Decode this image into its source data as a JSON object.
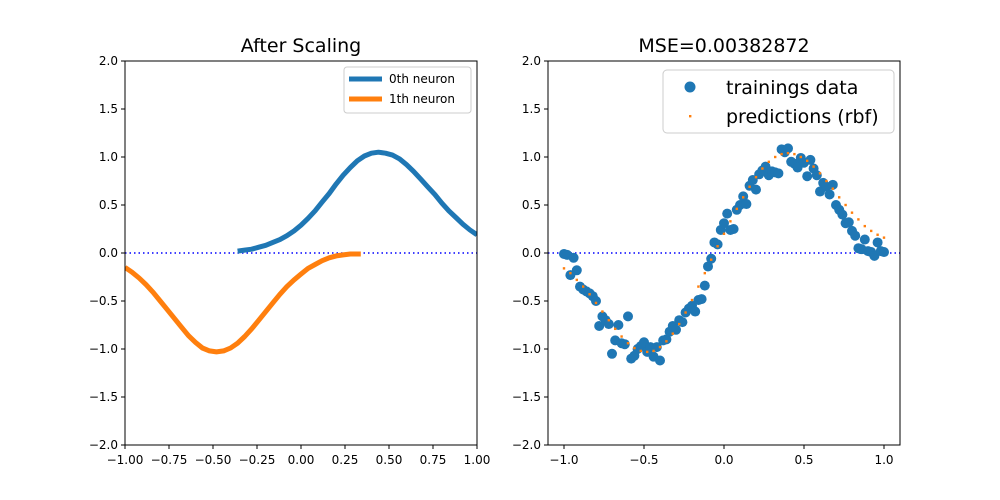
{
  "chart_data": [
    {
      "type": "line",
      "title": "After Scaling",
      "xlabel": "",
      "ylabel": "",
      "xlim": [
        -1.0,
        1.0
      ],
      "ylim": [
        -2.0,
        2.0
      ],
      "xticks": [
        -1.0,
        -0.75,
        -0.5,
        -0.25,
        0.0,
        0.25,
        0.5,
        0.75,
        1.0
      ],
      "xtick_labels": [
        "−1.00",
        "−0.75",
        "−0.50",
        "−0.25",
        "0.00",
        "0.25",
        "0.50",
        "0.75",
        "1.00"
      ],
      "yticks": [
        -2.0,
        -1.5,
        -1.0,
        -0.5,
        0.0,
        0.5,
        1.0,
        1.5,
        2.0
      ],
      "ytick_labels": [
        "−2.0",
        "−1.5",
        "−1.0",
        "−0.5",
        "0.0",
        "0.5",
        "1.0",
        "1.5",
        "2.0"
      ],
      "grid": false,
      "legend_position": "upper right",
      "reference_line": {
        "y": 0.0,
        "style": "dotted",
        "color": "#0000ff"
      },
      "series": [
        {
          "name": "0th neuron",
          "color": "#1f77b4",
          "x": [
            -0.36,
            -0.32,
            -0.28,
            -0.24,
            -0.2,
            -0.16,
            -0.12,
            -0.08,
            -0.04,
            0.0,
            0.04,
            0.08,
            0.12,
            0.16,
            0.2,
            0.24,
            0.28,
            0.32,
            0.36,
            0.4,
            0.44,
            0.48,
            0.52,
            0.56,
            0.6,
            0.64,
            0.68,
            0.72,
            0.76,
            0.8,
            0.84,
            0.88,
            0.92,
            0.96,
            1.0
          ],
          "y": [
            0.02,
            0.03,
            0.04,
            0.06,
            0.08,
            0.11,
            0.14,
            0.18,
            0.23,
            0.29,
            0.36,
            0.44,
            0.53,
            0.62,
            0.72,
            0.81,
            0.89,
            0.96,
            1.01,
            1.04,
            1.05,
            1.04,
            1.02,
            0.98,
            0.92,
            0.85,
            0.77,
            0.69,
            0.61,
            0.52,
            0.44,
            0.37,
            0.3,
            0.24,
            0.19
          ]
        },
        {
          "name": "1th neuron",
          "color": "#ff7f0e",
          "x": [
            -1.0,
            -0.96,
            -0.92,
            -0.88,
            -0.84,
            -0.8,
            -0.76,
            -0.72,
            -0.68,
            -0.64,
            -0.6,
            -0.56,
            -0.52,
            -0.48,
            -0.44,
            -0.4,
            -0.36,
            -0.32,
            -0.28,
            -0.24,
            -0.2,
            -0.16,
            -0.12,
            -0.08,
            -0.04,
            0.0,
            0.04,
            0.08,
            0.12,
            0.16,
            0.2,
            0.24,
            0.28,
            0.32,
            0.34
          ],
          "y": [
            -0.15,
            -0.2,
            -0.26,
            -0.33,
            -0.41,
            -0.5,
            -0.59,
            -0.68,
            -0.77,
            -0.86,
            -0.93,
            -0.99,
            -1.02,
            -1.03,
            -1.02,
            -0.99,
            -0.94,
            -0.87,
            -0.79,
            -0.7,
            -0.61,
            -0.52,
            -0.43,
            -0.35,
            -0.28,
            -0.22,
            -0.16,
            -0.12,
            -0.08,
            -0.05,
            -0.03,
            -0.02,
            -0.01,
            -0.01,
            -0.01
          ]
        }
      ]
    },
    {
      "type": "scatter",
      "title": "MSE=0.00382872",
      "xlabel": "",
      "ylabel": "",
      "xlim": [
        -1.1,
        1.1
      ],
      "ylim": [
        -2.0,
        2.0
      ],
      "xticks": [
        -1.0,
        -0.5,
        0.0,
        0.5,
        1.0
      ],
      "xtick_labels": [
        "−1.0",
        "−0.5",
        "0.0",
        "0.5",
        "1.0"
      ],
      "yticks": [
        -2.0,
        -1.5,
        -1.0,
        -0.5,
        0.0,
        0.5,
        1.0,
        1.5,
        2.0
      ],
      "ytick_labels": [
        "−2.0",
        "−1.5",
        "−1.0",
        "−0.5",
        "0.0",
        "0.5",
        "1.0",
        "1.5",
        "2.0"
      ],
      "grid": false,
      "legend_position": "upper right",
      "reference_line": {
        "y": 0.0,
        "style": "dotted",
        "color": "#0000ff"
      },
      "series": [
        {
          "name": "trainings data",
          "color": "#1f77b4",
          "marker": "circle",
          "x": [
            -1.0,
            -0.98,
            -0.96,
            -0.94,
            -0.92,
            -0.9,
            -0.88,
            -0.86,
            -0.84,
            -0.82,
            -0.8,
            -0.78,
            -0.76,
            -0.74,
            -0.72,
            -0.7,
            -0.68,
            -0.66,
            -0.64,
            -0.62,
            -0.6,
            -0.58,
            -0.56,
            -0.54,
            -0.52,
            -0.5,
            -0.48,
            -0.46,
            -0.44,
            -0.42,
            -0.4,
            -0.38,
            -0.36,
            -0.34,
            -0.32,
            -0.3,
            -0.28,
            -0.26,
            -0.24,
            -0.22,
            -0.2,
            -0.18,
            -0.16,
            -0.14,
            -0.12,
            -0.1,
            -0.08,
            -0.06,
            -0.04,
            -0.02,
            0.0,
            0.02,
            0.04,
            0.06,
            0.08,
            0.1,
            0.12,
            0.14,
            0.16,
            0.18,
            0.2,
            0.22,
            0.24,
            0.26,
            0.28,
            0.3,
            0.32,
            0.34,
            0.36,
            0.38,
            0.4,
            0.42,
            0.44,
            0.46,
            0.48,
            0.5,
            0.52,
            0.54,
            0.56,
            0.58,
            0.6,
            0.62,
            0.64,
            0.66,
            0.68,
            0.7,
            0.72,
            0.74,
            0.76,
            0.78,
            0.8,
            0.82,
            0.84,
            0.86,
            0.88,
            0.9,
            0.92,
            0.94,
            0.96,
            0.98,
            1.0
          ],
          "y": [
            -0.01,
            -0.02,
            -0.23,
            -0.05,
            -0.18,
            -0.35,
            -0.38,
            -0.4,
            -0.42,
            -0.45,
            -0.5,
            -0.76,
            -0.66,
            -0.7,
            -0.74,
            -1.05,
            -0.91,
            -0.75,
            -0.94,
            -0.95,
            -0.66,
            -1.1,
            -1.07,
            -1.0,
            -0.97,
            -0.93,
            -1.03,
            -0.98,
            -1.08,
            -0.98,
            -1.12,
            -0.91,
            -0.9,
            -0.82,
            -0.76,
            -0.8,
            -0.7,
            -0.72,
            -0.62,
            -0.58,
            -0.55,
            -0.61,
            -0.49,
            -0.48,
            -0.34,
            -0.14,
            -0.06,
            0.11,
            0.09,
            0.24,
            0.31,
            0.41,
            0.24,
            0.25,
            0.45,
            0.5,
            0.59,
            0.51,
            0.7,
            0.76,
            0.66,
            0.82,
            0.86,
            0.9,
            0.81,
            0.85,
            0.84,
            0.83,
            1.08,
            1.05,
            1.09,
            0.95,
            0.93,
            0.89,
            0.99,
            0.94,
            0.8,
            0.97,
            0.88,
            0.81,
            0.64,
            0.73,
            0.69,
            0.61,
            0.71,
            0.5,
            0.45,
            0.4,
            0.31,
            0.32,
            0.23,
            0.18,
            0.05,
            0.04,
            0.14,
            0.02,
            0.01,
            -0.03,
            0.11,
            0.02,
            0.01
          ]
        },
        {
          "name": "predictions (rbf)",
          "color": "#ff7f0e",
          "marker": "small-square",
          "x": [
            -1.0,
            -0.96,
            -0.92,
            -0.88,
            -0.84,
            -0.8,
            -0.76,
            -0.72,
            -0.68,
            -0.64,
            -0.6,
            -0.56,
            -0.52,
            -0.48,
            -0.44,
            -0.4,
            -0.36,
            -0.32,
            -0.28,
            -0.24,
            -0.2,
            -0.16,
            -0.12,
            -0.08,
            -0.04,
            0.0,
            0.04,
            0.08,
            0.12,
            0.16,
            0.2,
            0.24,
            0.28,
            0.32,
            0.36,
            0.4,
            0.44,
            0.48,
            0.52,
            0.56,
            0.6,
            0.64,
            0.68,
            0.72,
            0.76,
            0.8,
            0.84,
            0.88,
            0.92,
            0.96,
            1.0
          ],
          "y": [
            -0.16,
            -0.21,
            -0.28,
            -0.35,
            -0.43,
            -0.52,
            -0.61,
            -0.7,
            -0.79,
            -0.87,
            -0.94,
            -0.99,
            -1.02,
            -1.03,
            -1.02,
            -0.98,
            -0.92,
            -0.84,
            -0.74,
            -0.62,
            -0.49,
            -0.35,
            -0.21,
            -0.07,
            0.07,
            0.2,
            0.33,
            0.46,
            0.58,
            0.69,
            0.79,
            0.88,
            0.95,
            1.0,
            1.03,
            1.04,
            1.03,
            1.0,
            0.96,
            0.9,
            0.83,
            0.75,
            0.67,
            0.58,
            0.5,
            0.42,
            0.35,
            0.28,
            0.23,
            0.19,
            0.16
          ]
        }
      ]
    }
  ]
}
